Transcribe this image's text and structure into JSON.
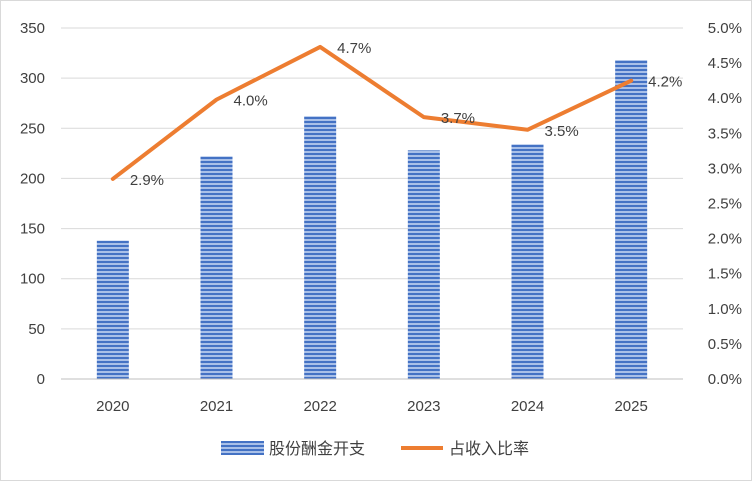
{
  "chart_data": {
    "type": "bar",
    "categories": [
      "2020",
      "2021",
      "2022",
      "2023",
      "2024",
      "2025"
    ],
    "series": [
      {
        "name": "股份酬金开支",
        "type": "bar",
        "axis": "left",
        "values": [
          138,
          222,
          262,
          228,
          234,
          318
        ],
        "color": "#4472c4"
      },
      {
        "name": "占收入比率",
        "type": "line",
        "axis": "right",
        "values": [
          2.85,
          3.98,
          4.73,
          3.73,
          3.55,
          4.25
        ],
        "labels": [
          "2.9%",
          "4.0%",
          "4.7%",
          "3.7%",
          "3.5%",
          "4.2%"
        ],
        "color": "#ed7d31"
      }
    ],
    "y_left": {
      "ylim": [
        0,
        350
      ],
      "ticks": [
        "0",
        "50",
        "100",
        "150",
        "200",
        "250",
        "300",
        "350"
      ]
    },
    "y_right": {
      "ylim": [
        0,
        5
      ],
      "ticks": [
        "0.0%",
        "0.5%",
        "1.0%",
        "1.5%",
        "2.0%",
        "2.5%",
        "3.0%",
        "3.5%",
        "4.0%",
        "4.5%",
        "5.0%"
      ]
    },
    "grid": true,
    "legend_position": "bottom"
  },
  "legend": {
    "bar_label": "股份酬金开支",
    "line_label": "占收入比率"
  }
}
